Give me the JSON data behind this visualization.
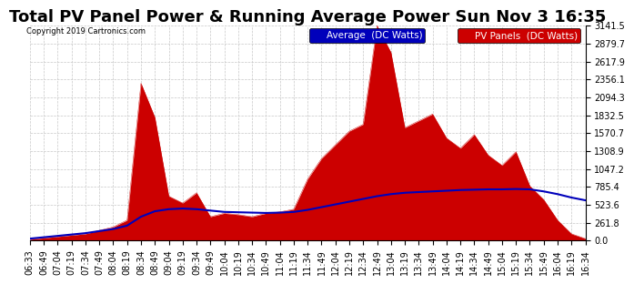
{
  "title": "Total PV Panel Power & Running Average Power Sun Nov 3 16:35",
  "copyright": "Copyright 2019 Cartronics.com",
  "legend_avg": "Average  (DC Watts)",
  "legend_pv": "PV Panels  (DC Watts)",
  "ylabel_values": [
    0.0,
    261.8,
    523.6,
    785.4,
    1047.2,
    1308.9,
    1570.7,
    1832.5,
    2094.3,
    2356.1,
    2617.9,
    2879.7,
    3141.5
  ],
  "ymax": 3141.5,
  "ymin": 0.0,
  "background_color": "#ffffff",
  "plot_bg_color": "#ffffff",
  "grid_color": "#c8c8c8",
  "pv_color": "#cc0000",
  "avg_color": "#0000bb",
  "title_fontsize": 13,
  "tick_fontsize": 7,
  "x_tick_labels": [
    "06:33",
    "06:49",
    "07:04",
    "07:19",
    "07:34",
    "07:49",
    "08:04",
    "08:19",
    "08:34",
    "08:49",
    "09:04",
    "09:19",
    "09:34",
    "09:49",
    "10:04",
    "10:19",
    "10:34",
    "10:49",
    "11:04",
    "11:19",
    "11:34",
    "11:49",
    "12:04",
    "12:19",
    "12:34",
    "12:49",
    "13:04",
    "13:19",
    "13:34",
    "13:49",
    "14:04",
    "14:19",
    "14:34",
    "14:49",
    "15:04",
    "15:19",
    "15:34",
    "15:49",
    "16:04",
    "16:19",
    "16:34"
  ],
  "pv_data": [
    20,
    40,
    60,
    80,
    100,
    150,
    200,
    300,
    2300,
    1800,
    650,
    550,
    700,
    350,
    400,
    380,
    350,
    400,
    420,
    460,
    900,
    1200,
    1400,
    1600,
    1700,
    3141,
    2750,
    1650,
    1750,
    1850,
    1500,
    1350,
    1550,
    1250,
    1100,
    1300,
    800,
    600,
    300,
    100,
    30
  ],
  "avg_data": [
    30,
    50,
    70,
    90,
    110,
    140,
    170,
    220,
    350,
    430,
    460,
    470,
    460,
    440,
    420,
    415,
    410,
    405,
    410,
    420,
    450,
    490,
    530,
    570,
    610,
    650,
    680,
    700,
    710,
    720,
    730,
    740,
    745,
    750,
    750,
    755,
    750,
    720,
    680,
    630,
    590
  ]
}
